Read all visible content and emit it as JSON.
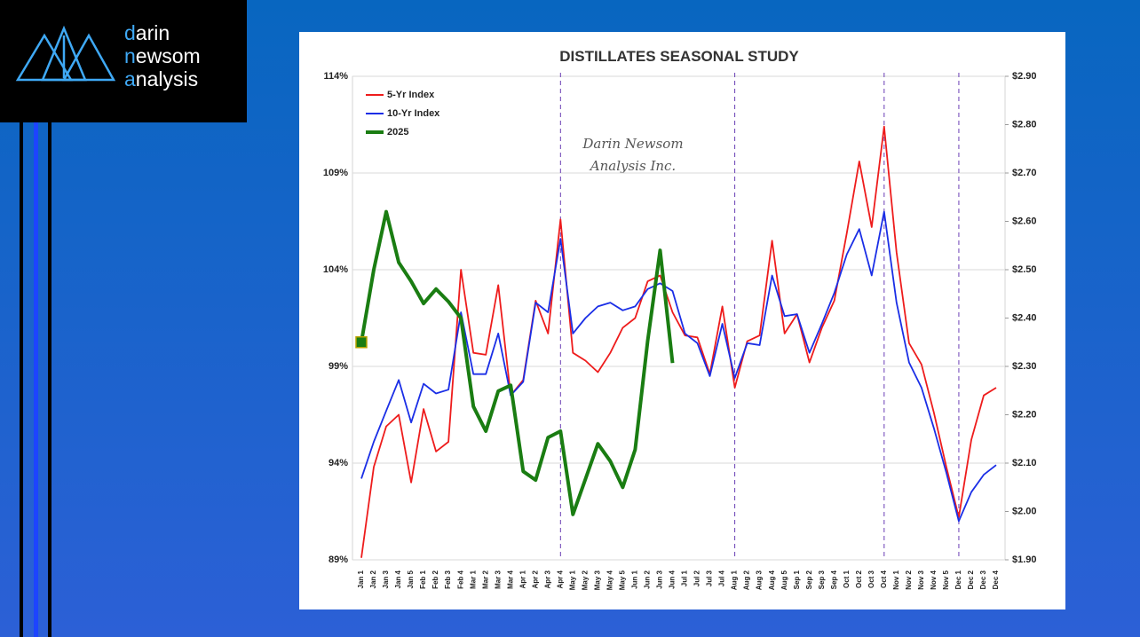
{
  "logo": {
    "lines": [
      "darin",
      "newsom",
      "analysis"
    ]
  },
  "chart_data": {
    "type": "line",
    "title": "DISTILLATES SEASONAL STUDY",
    "watermark": [
      "Darin Newsom",
      "Analysis Inc."
    ],
    "categories": [
      "Jan 1",
      "Jan 2",
      "Jan 3",
      "Jan 4",
      "Jan 5",
      "Feb 1",
      "Feb 2",
      "Feb 3",
      "Feb 4",
      "Mar 1",
      "Mar 2",
      "Mar 3",
      "Mar 4",
      "Apr 1",
      "Apr 2",
      "Apr 3",
      "Apr 4",
      "May 1",
      "May 2",
      "May 3",
      "May 4",
      "May 5",
      "Jun 1",
      "Jun 2",
      "Jun 3",
      "Jun 4",
      "Jul 1",
      "Jul 2",
      "Jul 3",
      "Jul 4",
      "Aug 1",
      "Aug 2",
      "Aug 3",
      "Aug 4",
      "Aug 5",
      "Sep 1",
      "Sep 2",
      "Sep 3",
      "Sep 4",
      "Oct 1",
      "Oct 2",
      "Oct 3",
      "Oct 4",
      "Nov 1",
      "Nov 2",
      "Nov 3",
      "Nov 4",
      "Nov 5",
      "Dec 1",
      "Dec 2",
      "Dec 3",
      "Dec 4"
    ],
    "series": [
      {
        "name": "5-Yr Index",
        "color": "#ee1c1c",
        "values": [
          89.1,
          93.8,
          95.9,
          96.5,
          93.0,
          96.8,
          94.6,
          95.1,
          104.0,
          99.7,
          99.6,
          103.2,
          97.5,
          98.3,
          102.4,
          100.7,
          106.6,
          99.7,
          99.3,
          98.7,
          99.7,
          101.0,
          101.5,
          103.4,
          103.7,
          101.8,
          100.6,
          100.5,
          98.6,
          102.1,
          97.9,
          100.3,
          100.6,
          105.5,
          100.7,
          101.7,
          99.2,
          101.0,
          102.4,
          105.9,
          109.6,
          106.2,
          111.4,
          104.9,
          100.2,
          99.1,
          96.6,
          93.8,
          91.2,
          95.2,
          97.5,
          97.9
        ]
      },
      {
        "name": "10-Yr Index",
        "color": "#1a2ee6",
        "values": [
          93.2,
          95.1,
          96.7,
          98.3,
          96.1,
          98.1,
          97.6,
          97.8,
          101.8,
          98.6,
          98.6,
          100.7,
          97.5,
          98.2,
          102.3,
          101.8,
          105.6,
          100.7,
          101.5,
          102.1,
          102.3,
          101.9,
          102.1,
          103.0,
          103.3,
          102.9,
          100.7,
          100.2,
          98.5,
          101.2,
          98.4,
          100.2,
          100.1,
          103.7,
          101.6,
          101.7,
          99.7,
          101.2,
          102.8,
          104.8,
          106.1,
          103.7,
          107.0,
          102.3,
          99.2,
          97.9,
          95.8,
          93.5,
          91.0,
          92.5,
          93.4,
          93.9
        ]
      },
      {
        "name": "2025",
        "color": "#1a7d12",
        "axis": "y2",
        "values": [
          2.35,
          2.5,
          2.62,
          2.515,
          2.476,
          2.43,
          2.46,
          2.434,
          2.4,
          2.217,
          2.166,
          2.249,
          2.261,
          2.083,
          2.065,
          2.153,
          2.166,
          1.994,
          2.067,
          2.14,
          2.104,
          2.05,
          2.128,
          2.353,
          2.54,
          2.307,
          null,
          null,
          null,
          null,
          null,
          null,
          null,
          null,
          null,
          null,
          null,
          null,
          null,
          null,
          null,
          null,
          null,
          null,
          null,
          null,
          null,
          null,
          null,
          null,
          null,
          null
        ]
      }
    ],
    "ylim": [
      89,
      114
    ],
    "yticks": [
      {
        "value": 89,
        "label": "89%"
      },
      {
        "value": 94,
        "label": "94%"
      },
      {
        "value": 99,
        "label": "99%"
      },
      {
        "value": 104,
        "label": "104%"
      },
      {
        "value": 109,
        "label": "109%"
      },
      {
        "value": 114,
        "label": "114%"
      }
    ],
    "y2lim": [
      1.9,
      2.9
    ],
    "y2ticks": [
      {
        "value": 1.9,
        "label": "$1.90"
      },
      {
        "value": 2.0,
        "label": "$2.00"
      },
      {
        "value": 2.1,
        "label": "$2.10"
      },
      {
        "value": 2.2,
        "label": "$2.20"
      },
      {
        "value": 2.3,
        "label": "$2.30"
      },
      {
        "value": 2.4,
        "label": "$2.40"
      },
      {
        "value": 2.5,
        "label": "$2.50"
      },
      {
        "value": 2.6,
        "label": "$2.60"
      },
      {
        "value": 2.7,
        "label": "$2.70"
      },
      {
        "value": 2.8,
        "label": "$2.80"
      },
      {
        "value": 2.9,
        "label": "$2.90"
      }
    ],
    "grid": true,
    "legend": "upper left"
  }
}
